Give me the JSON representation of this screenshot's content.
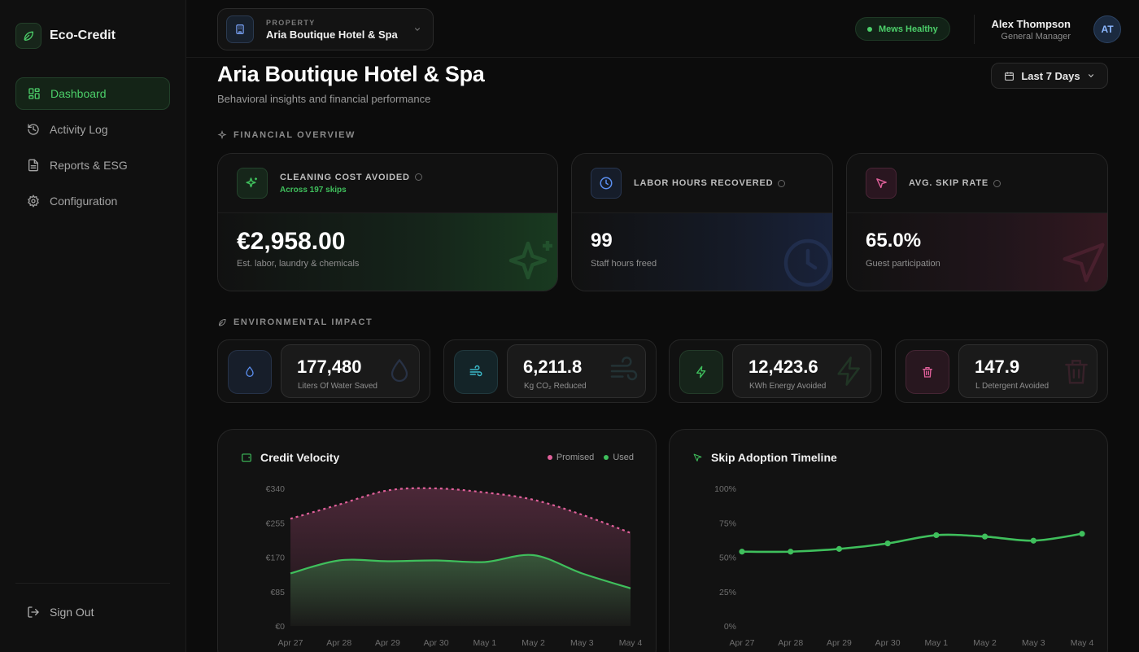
{
  "brand": {
    "name": "Eco-Credit"
  },
  "sidebar": {
    "items": [
      {
        "label": "Dashboard",
        "icon": "dashboard-grid-icon",
        "active": true
      },
      {
        "label": "Activity Log",
        "icon": "history-icon"
      },
      {
        "label": "Reports & ESG",
        "icon": "document-icon"
      },
      {
        "label": "Configuration",
        "icon": "gear-icon"
      }
    ],
    "signout": "Sign Out"
  },
  "header": {
    "property_label": "PROPERTY",
    "property_name": "Aria Boutique Hotel & Spa",
    "health": "Mews Healthy",
    "user_name": "Alex Thompson",
    "user_role": "General Manager",
    "avatar_initials": "AT"
  },
  "page": {
    "title": "Aria Boutique Hotel & Spa",
    "subtitle": "Behavioral insights and financial performance",
    "date_range": "Last 7 Days"
  },
  "financial": {
    "section_title": "FINANCIAL OVERVIEW",
    "cards": [
      {
        "label": "CLEANING COST AVOIDED",
        "sub": "Across 197 skips",
        "value": "€2,958.00",
        "desc": "Est. labor, laundry & chemicals",
        "accent": "#3fbf5c"
      },
      {
        "label": "LABOR HOURS RECOVERED",
        "value": "99",
        "desc": "Staff hours freed",
        "accent": "#5b8ff0"
      },
      {
        "label": "AVG. SKIP RATE",
        "value": "65.0%",
        "desc": "Guest participation",
        "accent": "#e0609a"
      }
    ]
  },
  "environmental": {
    "section_title": "ENVIRONMENTAL IMPACT",
    "cards": [
      {
        "value": "177,480",
        "label": "Liters Of Water Saved",
        "icon": "water-drop-icon",
        "accent": "#5b8ff0"
      },
      {
        "value": "6,211.8",
        "label": "Kg CO₂ Reduced",
        "icon": "wind-icon",
        "accent": "#3bb8c8"
      },
      {
        "value": "12,423.6",
        "label": "KWh Energy Avoided",
        "icon": "lightning-icon",
        "accent": "#3fbf5c"
      },
      {
        "value": "147.9",
        "label": "L Detergent Avoided",
        "icon": "trash-icon",
        "accent": "#e0609a"
      }
    ]
  },
  "charts": {
    "credit_velocity_title": "Credit Velocity",
    "skip_adoption_title": "Skip Adoption Timeline",
    "legend_promised": "Promised",
    "legend_used": "Used"
  },
  "chart_data": [
    {
      "type": "area",
      "title": "Credit Velocity",
      "categories": [
        "Apr 27",
        "Apr 28",
        "Apr 29",
        "Apr 30",
        "May 1",
        "May 2",
        "May 3",
        "May 4"
      ],
      "yticks": [
        "€0",
        "€85",
        "€170",
        "€255",
        "€340"
      ],
      "ylim": [
        0,
        340
      ],
      "series": [
        {
          "name": "Promised",
          "values": [
            265,
            300,
            335,
            340,
            330,
            312,
            275,
            230
          ],
          "color": "#e0609a",
          "style": "dashed"
        },
        {
          "name": "Used",
          "values": [
            130,
            162,
            160,
            162,
            158,
            175,
            130,
            93
          ],
          "color": "#3fbf5c",
          "style": "solid"
        }
      ]
    },
    {
      "type": "line",
      "title": "Skip Adoption Timeline",
      "categories": [
        "Apr 27",
        "Apr 28",
        "Apr 29",
        "Apr 30",
        "May 1",
        "May 2",
        "May 3",
        "May 4"
      ],
      "yticks": [
        "0%",
        "25%",
        "50%",
        "75%",
        "100%"
      ],
      "ylim": [
        0,
        100
      ],
      "series": [
        {
          "values": [
            54,
            54,
            56,
            60,
            66,
            65,
            62,
            67
          ],
          "color": "#3fbf5c"
        }
      ]
    }
  ]
}
